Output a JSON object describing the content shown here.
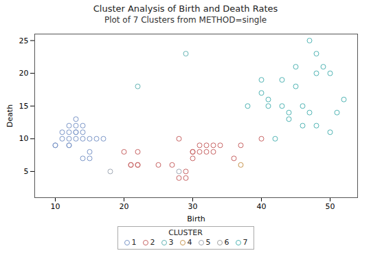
{
  "chart_data": {
    "type": "scatter",
    "title": "Cluster Analysis of Birth and Death Rates",
    "subtitle": "Plot of 7 Clusters from METHOD=single",
    "xlabel": "Birth",
    "ylabel": "Death",
    "xlim": [
      7,
      54
    ],
    "ylim": [
      1,
      26
    ],
    "xticks": [
      10,
      20,
      30,
      40,
      50
    ],
    "yticks": [
      5,
      10,
      15,
      20,
      25
    ],
    "grid": false,
    "marker": "circle",
    "legend": "bottom",
    "legend_title": "CLUSTER",
    "series": [
      {
        "name": "1",
        "color": "#7b96c8",
        "x": [
          10,
          10,
          11,
          11,
          12,
          12,
          12,
          12,
          12,
          13,
          13,
          13,
          13,
          13,
          14,
          14,
          14,
          14,
          15,
          15,
          15,
          16,
          17
        ],
        "values": [
          9,
          9,
          11,
          10,
          12,
          11,
          10,
          9,
          9,
          13,
          12,
          11,
          11,
          10,
          12,
          11,
          10,
          7,
          8,
          7,
          10,
          10,
          10
        ]
      },
      {
        "name": "2",
        "color": "#c86464",
        "x": [
          20,
          21,
          21,
          22,
          22,
          22,
          25,
          27,
          28,
          28,
          29,
          29,
          30,
          30,
          30,
          31,
          31,
          32,
          32,
          33,
          33,
          34,
          36,
          37,
          40
        ],
        "values": [
          8,
          6,
          6,
          8,
          6,
          6,
          6,
          6,
          10,
          4,
          5,
          4,
          8,
          8,
          7,
          8,
          9,
          9,
          8,
          9,
          8,
          9,
          7,
          9,
          10
        ]
      },
      {
        "name": "3",
        "color": "#64b4b4",
        "x": [
          22,
          29
        ],
        "values": [
          18,
          23
        ]
      },
      {
        "name": "4",
        "color": "#c89650",
        "x": [
          37
        ],
        "values": [
          6
        ]
      },
      {
        "name": "5",
        "color": "#a0a8b4",
        "x": [
          18,
          28
        ],
        "values": [
          5,
          5
        ]
      },
      {
        "name": "6",
        "color": "#a0a0a0",
        "x": [],
        "values": []
      },
      {
        "name": "7",
        "color": "#50b4b4",
        "x": [
          38,
          40,
          40,
          41,
          41,
          42,
          43,
          43,
          44,
          44,
          45,
          45,
          46,
          46,
          47,
          47,
          48,
          48,
          48,
          49,
          50,
          50,
          51,
          52
        ],
        "values": [
          15,
          17,
          19,
          16,
          15,
          10,
          19,
          15,
          14,
          13,
          21,
          18,
          15,
          12,
          25,
          14,
          23,
          20,
          12,
          21,
          20,
          11,
          14,
          16
        ]
      }
    ]
  }
}
